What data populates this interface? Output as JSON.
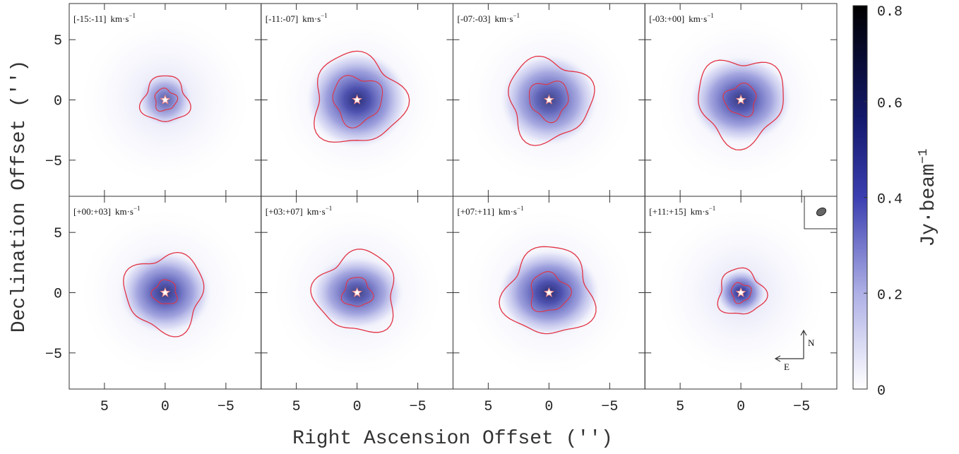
{
  "figure": {
    "panels": [
      {
        "label": "[-15:-11]"
      },
      {
        "label": "[-11:-07]"
      },
      {
        "label": "[-07:-03]"
      },
      {
        "label": "[-03:+00]"
      },
      {
        "label": "[+00:+03]"
      },
      {
        "label": "[+03:+07]"
      },
      {
        "label": "[+07:+11]"
      },
      {
        "label": "[+11:+15]"
      }
    ],
    "unit": "km·s",
    "unit_exp": "−1",
    "xlabel": "Right Ascension Offset ('')",
    "ylabel": "Declination Offset ('')",
    "xlim": [
      7.9,
      -7.9
    ],
    "ylim": [
      -8,
      8
    ],
    "xticks": [
      5,
      0,
      {
        "value": -5,
        "label": "−5"
      }
    ],
    "yticks": [
      {
        "value": -5,
        "label": "−5"
      },
      0,
      5
    ],
    "colorbar": {
      "label": "Jy·beam",
      "label_exp": "−1",
      "lim": [
        0,
        0.8
      ],
      "ticks": [
        0,
        0.2,
        0.4,
        0.6,
        0.8
      ]
    },
    "compass": {
      "north": "N",
      "east": "E"
    }
  }
}
